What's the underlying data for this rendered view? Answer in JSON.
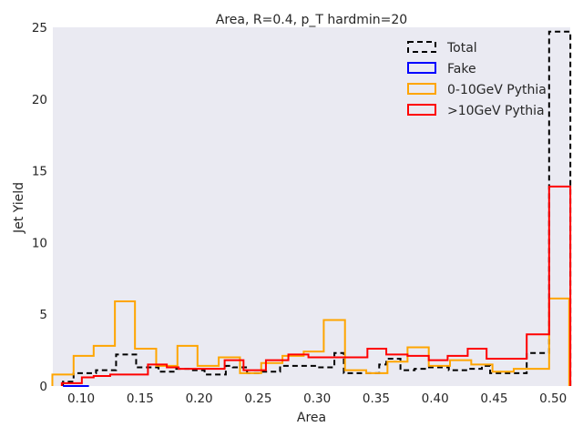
{
  "chart_data": {
    "type": "histogram-step",
    "title": "Area, R=0.4, p_T hardmin=20",
    "xlabel": "Area",
    "ylabel": "Jet Yield",
    "xlim": [
      0.076,
      0.5145
    ],
    "ylim": [
      0,
      25
    ],
    "xticks": [
      "0.10",
      "0.15",
      "0.20",
      "0.25",
      "0.30",
      "0.35",
      "0.40",
      "0.45",
      "0.50"
    ],
    "yticks": [
      "0",
      "5",
      "10",
      "15",
      "20",
      "25"
    ],
    "grid": false,
    "background": "#eaeaf2",
    "legend_position": "top-right",
    "series": [
      {
        "name": "Total",
        "color": "#000000",
        "style": "dashed",
        "edges": [
          0.0846,
          0.0936,
          0.1126,
          0.1296,
          0.1466,
          0.1586,
          0.1656,
          0.1806,
          0.1926,
          0.2046,
          0.2226,
          0.2286,
          0.2406,
          0.2536,
          0.2686,
          0.2856,
          0.3006,
          0.3146,
          0.3226,
          0.3376,
          0.3526,
          0.3586,
          0.3706,
          0.3826,
          0.3936,
          0.4116,
          0.4276,
          0.4396,
          0.4466,
          0.4596,
          0.4776,
          0.4866,
          0.4966,
          0.5146
        ],
        "values": [
          0.3,
          0.9,
          1.1,
          2.2,
          1.3,
          1.3,
          1.0,
          1.2,
          1.1,
          0.8,
          1.4,
          1.3,
          0.9,
          1.0,
          1.4,
          1.4,
          1.3,
          2.3,
          0.9,
          0.9,
          1.5,
          1.9,
          1.1,
          1.2,
          1.3,
          1.1,
          1.2,
          1.4,
          0.9,
          0.9,
          2.3,
          2.3,
          24.7
        ]
      },
      {
        "name": "Fake",
        "color": "#0000ff",
        "style": "solid",
        "edges": [
          0.0846,
          0.1066
        ],
        "values": [
          0.0
        ]
      },
      {
        "name": "0-10GeV Pythia",
        "color": "#ffa500",
        "style": "solid",
        "edges": [
          0.0756,
          0.0936,
          0.1106,
          0.1286,
          0.1456,
          0.1636,
          0.1816,
          0.1986,
          0.2166,
          0.2346,
          0.2526,
          0.2706,
          0.2886,
          0.3056,
          0.3236,
          0.3416,
          0.3596,
          0.3766,
          0.3946,
          0.4126,
          0.4306,
          0.4486,
          0.4666,
          0.4846,
          0.4966,
          0.5136
        ],
        "values": [
          0.8,
          2.1,
          2.8,
          5.9,
          2.6,
          1.4,
          2.8,
          1.4,
          2.0,
          0.9,
          1.6,
          2.1,
          2.4,
          4.6,
          1.1,
          0.9,
          1.7,
          2.7,
          1.4,
          1.8,
          1.5,
          1.0,
          1.2,
          1.2,
          6.1
        ]
      },
      {
        "name": ">10GeV Pythia",
        "color": "#ff0000",
        "style": "solid",
        "edges": [
          0.0836,
          0.1006,
          0.1106,
          0.1246,
          0.1566,
          0.1726,
          0.1826,
          0.1936,
          0.2216,
          0.2376,
          0.2566,
          0.2756,
          0.2926,
          0.3046,
          0.3226,
          0.3426,
          0.3586,
          0.3766,
          0.3946,
          0.4106,
          0.4276,
          0.4436,
          0.4596,
          0.4776,
          0.4966,
          0.5146
        ],
        "values": [
          0.2,
          0.6,
          0.7,
          0.8,
          1.5,
          1.3,
          1.2,
          1.2,
          1.8,
          1.1,
          1.8,
          2.2,
          2.0,
          2.0,
          2.0,
          2.6,
          2.2,
          2.1,
          1.8,
          2.1,
          2.6,
          1.9,
          1.9,
          3.6,
          13.9
        ]
      }
    ]
  }
}
